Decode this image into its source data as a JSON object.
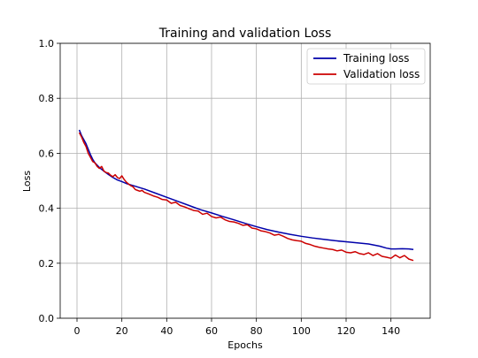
{
  "chart_data": {
    "type": "line",
    "title": "Training and validation Loss",
    "xlabel": "Epochs",
    "ylabel": "Loss",
    "xlim": [
      -7.5,
      157.5
    ],
    "ylim": [
      0.0,
      1.0
    ],
    "xticks": [
      0,
      20,
      40,
      60,
      80,
      100,
      120,
      140
    ],
    "yticks": [
      0.0,
      0.2,
      0.4,
      0.6,
      0.8,
      1.0
    ],
    "grid": true,
    "legend_position": "upper right",
    "series": [
      {
        "name": "Training loss",
        "color": "#0000aa",
        "x": [
          1,
          2,
          3,
          4,
          5,
          6,
          7,
          8,
          10,
          12,
          14,
          16,
          18,
          20,
          22,
          24,
          26,
          28,
          30,
          35,
          40,
          45,
          50,
          55,
          60,
          65,
          70,
          75,
          80,
          85,
          90,
          95,
          100,
          105,
          110,
          115,
          120,
          125,
          130,
          135,
          138,
          140,
          142,
          145,
          148,
          150
        ],
        "y": [
          0.685,
          0.665,
          0.65,
          0.635,
          0.615,
          0.595,
          0.578,
          0.565,
          0.548,
          0.535,
          0.523,
          0.512,
          0.503,
          0.497,
          0.49,
          0.485,
          0.48,
          0.475,
          0.47,
          0.455,
          0.44,
          0.425,
          0.41,
          0.395,
          0.383,
          0.37,
          0.358,
          0.345,
          0.333,
          0.322,
          0.313,
          0.305,
          0.298,
          0.292,
          0.287,
          0.282,
          0.278,
          0.274,
          0.27,
          0.262,
          0.255,
          0.252,
          0.252,
          0.253,
          0.252,
          0.25
        ]
      },
      {
        "name": "Validation loss",
        "color": "#cc0000",
        "x": [
          1,
          2,
          3,
          4,
          5,
          6,
          7,
          8,
          9,
          10,
          11,
          12,
          13,
          14,
          15,
          16,
          17,
          18,
          19,
          20,
          21,
          22,
          23,
          24,
          25,
          26,
          27,
          28,
          29,
          30,
          32,
          34,
          36,
          38,
          40,
          42,
          44,
          46,
          48,
          50,
          52,
          54,
          56,
          58,
          60,
          62,
          64,
          66,
          68,
          70,
          72,
          74,
          76,
          78,
          80,
          82,
          84,
          86,
          88,
          90,
          92,
          94,
          96,
          98,
          100,
          102,
          104,
          106,
          108,
          110,
          112,
          114,
          116,
          118,
          120,
          122,
          124,
          126,
          128,
          130,
          132,
          134,
          136,
          138,
          140,
          142,
          144,
          146,
          148,
          150
        ],
        "y": [
          0.675,
          0.66,
          0.64,
          0.625,
          0.6,
          0.585,
          0.57,
          0.565,
          0.552,
          0.545,
          0.552,
          0.535,
          0.53,
          0.528,
          0.52,
          0.515,
          0.522,
          0.512,
          0.508,
          0.518,
          0.505,
          0.495,
          0.488,
          0.482,
          0.478,
          0.468,
          0.465,
          0.462,
          0.465,
          0.458,
          0.452,
          0.445,
          0.44,
          0.432,
          0.43,
          0.418,
          0.422,
          0.41,
          0.405,
          0.398,
          0.392,
          0.39,
          0.378,
          0.382,
          0.37,
          0.365,
          0.368,
          0.358,
          0.352,
          0.35,
          0.345,
          0.338,
          0.34,
          0.328,
          0.325,
          0.318,
          0.315,
          0.31,
          0.302,
          0.305,
          0.298,
          0.29,
          0.285,
          0.282,
          0.28,
          0.272,
          0.268,
          0.262,
          0.258,
          0.255,
          0.252,
          0.25,
          0.245,
          0.248,
          0.24,
          0.238,
          0.242,
          0.235,
          0.232,
          0.238,
          0.228,
          0.235,
          0.225,
          0.222,
          0.218,
          0.23,
          0.22,
          0.228,
          0.215,
          0.21
        ]
      }
    ]
  }
}
